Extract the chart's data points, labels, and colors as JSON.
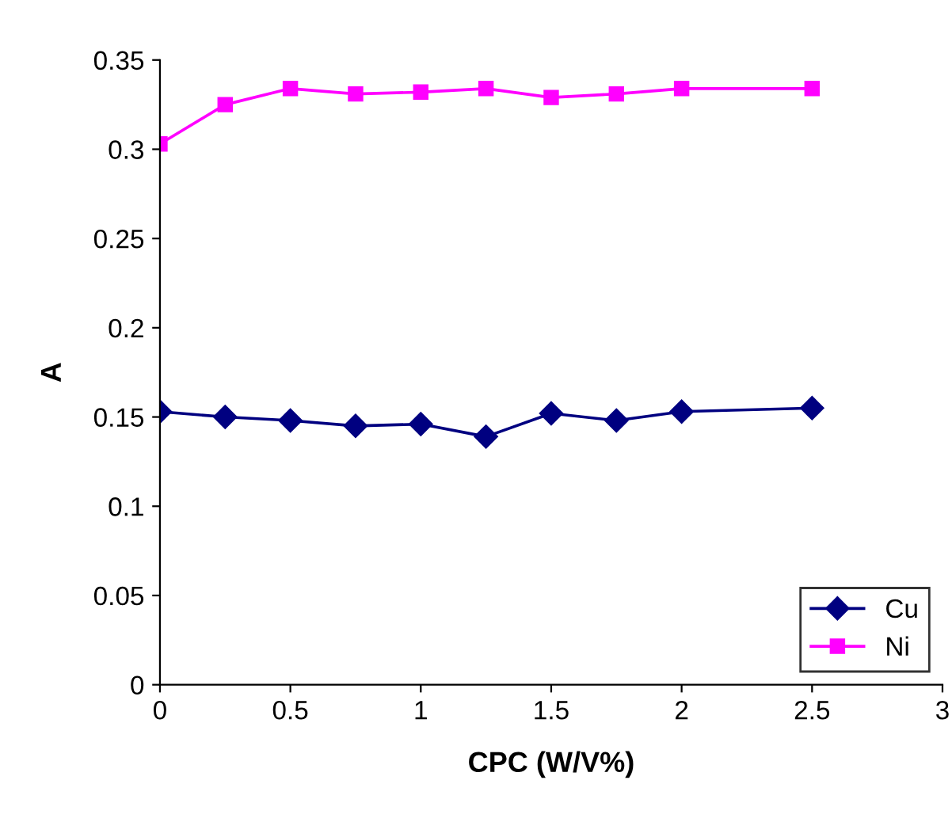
{
  "chart_data": {
    "type": "line",
    "xlabel": "CPC (W/V%)",
    "ylabel": "A",
    "x": [
      0,
      0.25,
      0.5,
      0.75,
      1,
      1.25,
      1.5,
      1.75,
      2,
      2.5
    ],
    "series": [
      {
        "name": "Cu",
        "color": "#000080",
        "marker": "diamond",
        "values": [
          0.153,
          0.15,
          0.148,
          0.145,
          0.146,
          0.139,
          0.152,
          0.148,
          0.153,
          0.155
        ]
      },
      {
        "name": "Ni",
        "color": "#ff00ff",
        "marker": "square",
        "values": [
          0.303,
          0.325,
          0.334,
          0.331,
          0.332,
          0.334,
          0.329,
          0.331,
          0.334,
          0.334
        ]
      }
    ],
    "xlim": [
      0,
      3
    ],
    "xticks": [
      0,
      0.5,
      1,
      1.5,
      2,
      2.5,
      3
    ],
    "ylim": [
      0,
      0.35
    ],
    "yticks": [
      0,
      0.05,
      0.1,
      0.15,
      0.2,
      0.25,
      0.3,
      0.35
    ],
    "grid": false,
    "legend": "bottom right",
    "line_style": "solid"
  }
}
